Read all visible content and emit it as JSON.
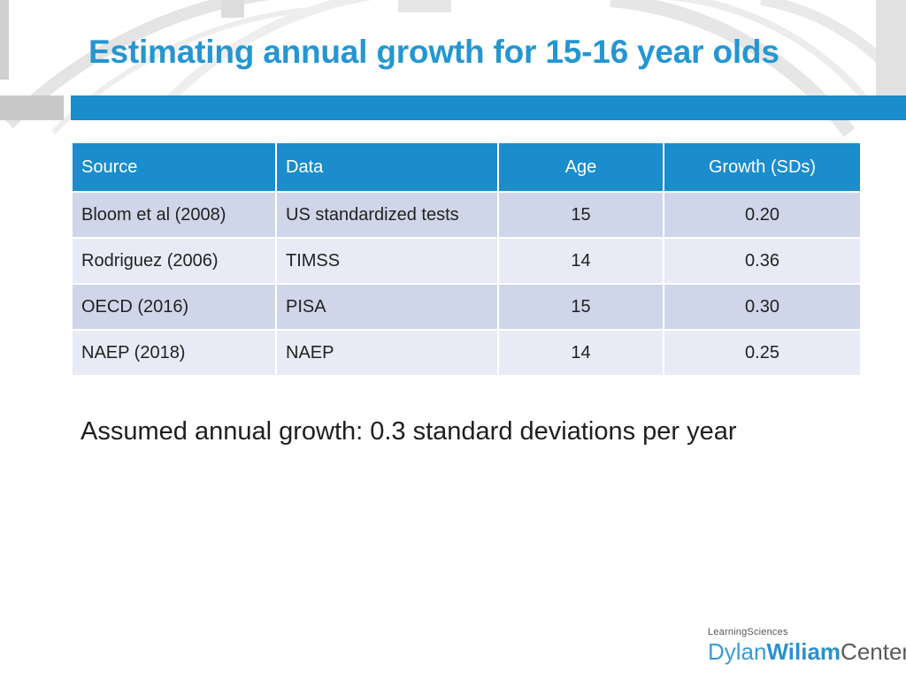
{
  "slide": {
    "title": "Estimating annual growth for 15-16 year olds",
    "colors": {
      "accent": "#1b8ccc",
      "title": "#2596d1",
      "row_dark": "#cfd6e9",
      "row_light": "#e8ebf5"
    }
  },
  "table": {
    "headers": [
      "Source",
      "Data",
      "Age",
      "Growth (SDs)"
    ],
    "rows": [
      {
        "source": "Bloom et al (2008)",
        "data": "US standardized tests",
        "age": "15",
        "growth": "0.20"
      },
      {
        "source": "Rodriguez (2006)",
        "data": "TIMSS",
        "age": "14",
        "growth": "0.36"
      },
      {
        "source": "OECD (2016)",
        "data": "PISA",
        "age": "15",
        "growth": "0.30"
      },
      {
        "source": "NAEP (2018)",
        "data": "NAEP",
        "age": "14",
        "growth": "0.25"
      }
    ]
  },
  "assumption": "Assumed annual growth: 0.3 standard deviations per year",
  "logo": {
    "top": "LearningSciences",
    "part1": "Dylan",
    "part2": "Wiliam",
    "part3": "Center"
  }
}
